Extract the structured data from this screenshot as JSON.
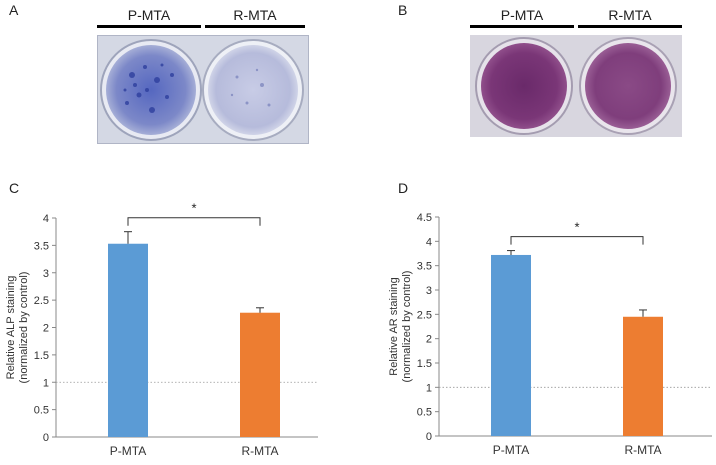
{
  "panels": {
    "A": {
      "letter": "A",
      "headers": [
        "P-MTA",
        "R-MTA"
      ]
    },
    "B": {
      "letter": "B",
      "headers": [
        "P-MTA",
        "R-MTA"
      ]
    },
    "C": {
      "letter": "C"
    },
    "D": {
      "letter": "D"
    }
  },
  "colors": {
    "p_mta": "#5b9bd5",
    "r_mta": "#ed7d31",
    "well_A": "#3d4fa8",
    "well_B": "#6e2f6a"
  },
  "chart_data": [
    {
      "type": "bar",
      "categories": [
        "P-MTA",
        "R-MTA"
      ],
      "values": [
        3.53,
        2.27
      ],
      "errors": [
        0.22,
        0.09
      ],
      "ylabel_lines": [
        "Relative  ALP staining",
        "(normalized by control)"
      ],
      "ylim": [
        0,
        4
      ],
      "yticks": [
        "0",
        "0.5",
        "1",
        "1.5",
        "2",
        "2.5",
        "3",
        "3.5",
        "4"
      ],
      "reference_line": 1,
      "significance": "*",
      "grid": false
    },
    {
      "type": "bar",
      "categories": [
        "P-MTA",
        "R-MTA"
      ],
      "values": [
        3.72,
        2.45
      ],
      "errors": [
        0.09,
        0.14
      ],
      "ylabel_lines": [
        "Relative  AR staining",
        "(normalized by control)"
      ],
      "ylim": [
        0,
        4.5
      ],
      "yticks": [
        "0",
        "0.5",
        "1",
        "1.5",
        "2",
        "2.5",
        "3",
        "3.5",
        "4",
        "4.5"
      ],
      "reference_line": 1,
      "significance": "*",
      "grid": false
    }
  ]
}
